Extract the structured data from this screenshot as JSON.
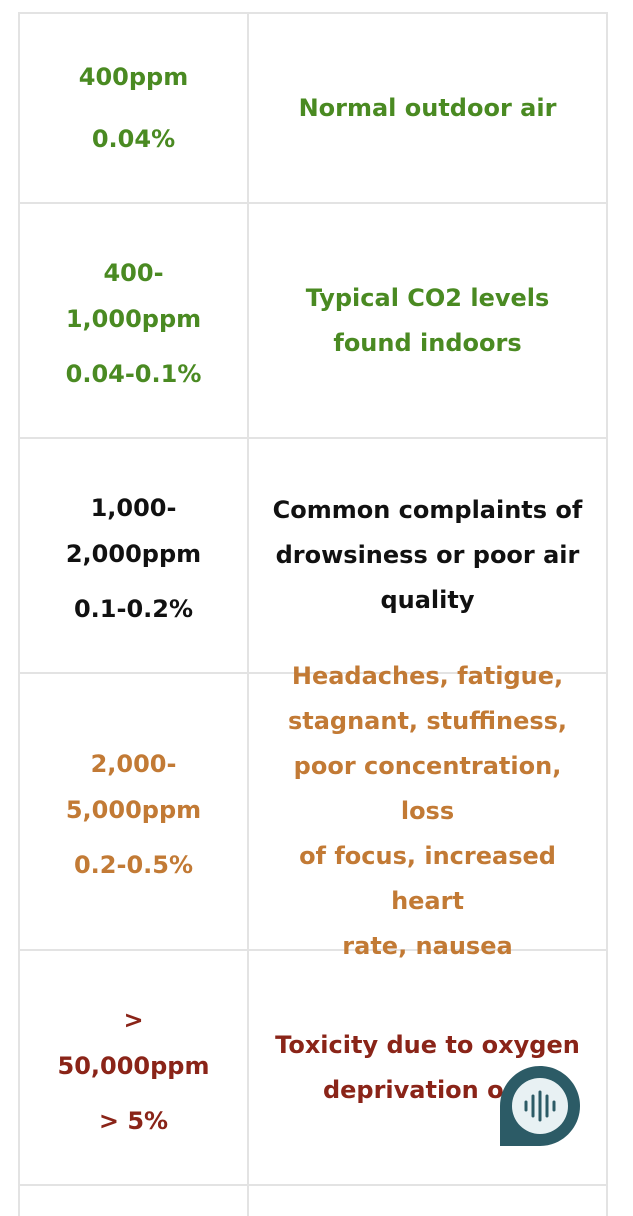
{
  "rows": [
    {
      "ppm": "400ppm",
      "percent": "0.04%",
      "description": "Normal outdoor air",
      "color": "#4a8a22"
    },
    {
      "ppm": "400-\n1,000ppm",
      "percent": "0.04-0.1%",
      "description": "Typical CO2 levels\nfound indoors",
      "color": "#4a8a22"
    },
    {
      "ppm": "1,000-\n2,000ppm",
      "percent": "0.1-0.2%",
      "description": "Common complaints of\ndrowsiness or poor air\nquality",
      "color": "#111111"
    },
    {
      "ppm": "2,000-\n5,000ppm",
      "percent": "0.2-0.5%",
      "description": "Headaches, fatigue,\nstagnant, stuffiness,\npoor concentration, loss\nof focus, increased heart\nrate, nausea",
      "color": "#c27a35"
    },
    {
      "ppm": ">\n50,000ppm",
      "percent": "> 5%",
      "description": "Toxicity due to oxygen\ndeprivation occ",
      "color": "#8a2418"
    }
  ],
  "chat_widget": {
    "icon": "sound-wave-icon",
    "color": "#2c5b66"
  }
}
